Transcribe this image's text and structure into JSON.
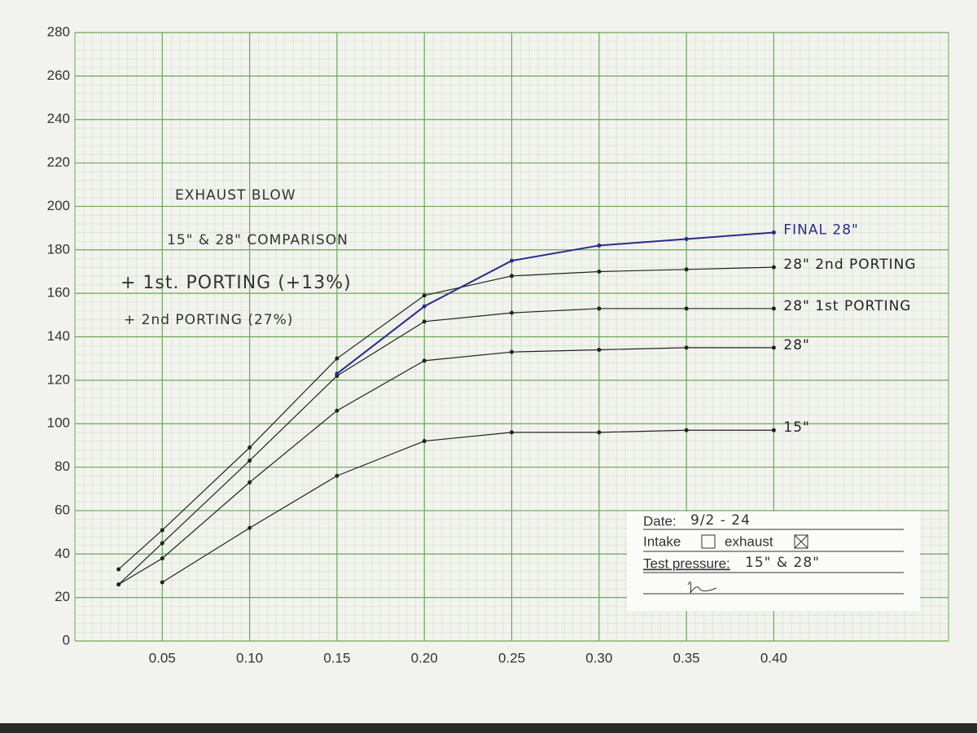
{
  "chart_data": {
    "type": "line",
    "annotations": [
      "EXHAUST BLOW",
      "15\" & 28\" COMPARISON",
      "+ 1st. PORTING (+13%)",
      "+ 2nd PORTING (27%)"
    ],
    "xlim": [
      0,
      0.5
    ],
    "ylim": [
      0,
      280
    ],
    "xticks": [
      0.05,
      {
        "value": 0.1,
        "label": "0.10"
      },
      0.15,
      {
        "value": 0.2,
        "label": "0.20"
      },
      0.25,
      {
        "value": 0.3,
        "label": "0.30"
      },
      0.35,
      {
        "value": 0.4,
        "label": "0.40"
      }
    ],
    "yticks": [
      0,
      20,
      40,
      60,
      80,
      100,
      120,
      140,
      160,
      180,
      200,
      220,
      240,
      260,
      280
    ],
    "grid": true,
    "series": [
      {
        "name": "15\"",
        "color": "#222222",
        "x": [
          0.05,
          0.1,
          0.15,
          0.2,
          0.25,
          0.3,
          0.35,
          0.4
        ],
        "values": [
          27,
          52,
          76,
          92,
          96,
          96,
          97,
          97
        ]
      },
      {
        "name": "28\"",
        "color": "#222222",
        "x": [
          0.025,
          0.05,
          0.1,
          0.15,
          0.2,
          0.25,
          0.3,
          0.35,
          0.4
        ],
        "values": [
          26,
          38,
          73,
          106,
          129,
          133,
          134,
          135,
          135
        ]
      },
      {
        "name": "28\" 1st PORTING",
        "color": "#222222",
        "x": [
          0.025,
          0.05,
          0.1,
          0.15,
          0.2,
          0.25,
          0.3,
          0.35,
          0.4
        ],
        "values": [
          26,
          45,
          83,
          122,
          147,
          151,
          153,
          153,
          153
        ]
      },
      {
        "name": "28\" 2nd PORTING",
        "color": "#222222",
        "x": [
          0.025,
          0.05,
          0.1,
          0.15,
          0.2,
          0.25,
          0.3,
          0.35,
          0.4
        ],
        "values": [
          33,
          51,
          89,
          130,
          159,
          168,
          170,
          171,
          172
        ]
      },
      {
        "name": "FINAL 28\"",
        "color": "#2b2b8c",
        "x": [
          0.15,
          0.2,
          0.25,
          0.3,
          0.35,
          0.4
        ],
        "values": [
          123,
          154,
          175,
          182,
          185,
          188
        ]
      }
    ]
  },
  "info_box": {
    "date_label": "Date:",
    "date": "9/2 - 24",
    "intake_label": "Intake",
    "exhaust_label": "exhaust",
    "pressure_label": "Test pressure:",
    "pressure": "15\" & 28\""
  }
}
